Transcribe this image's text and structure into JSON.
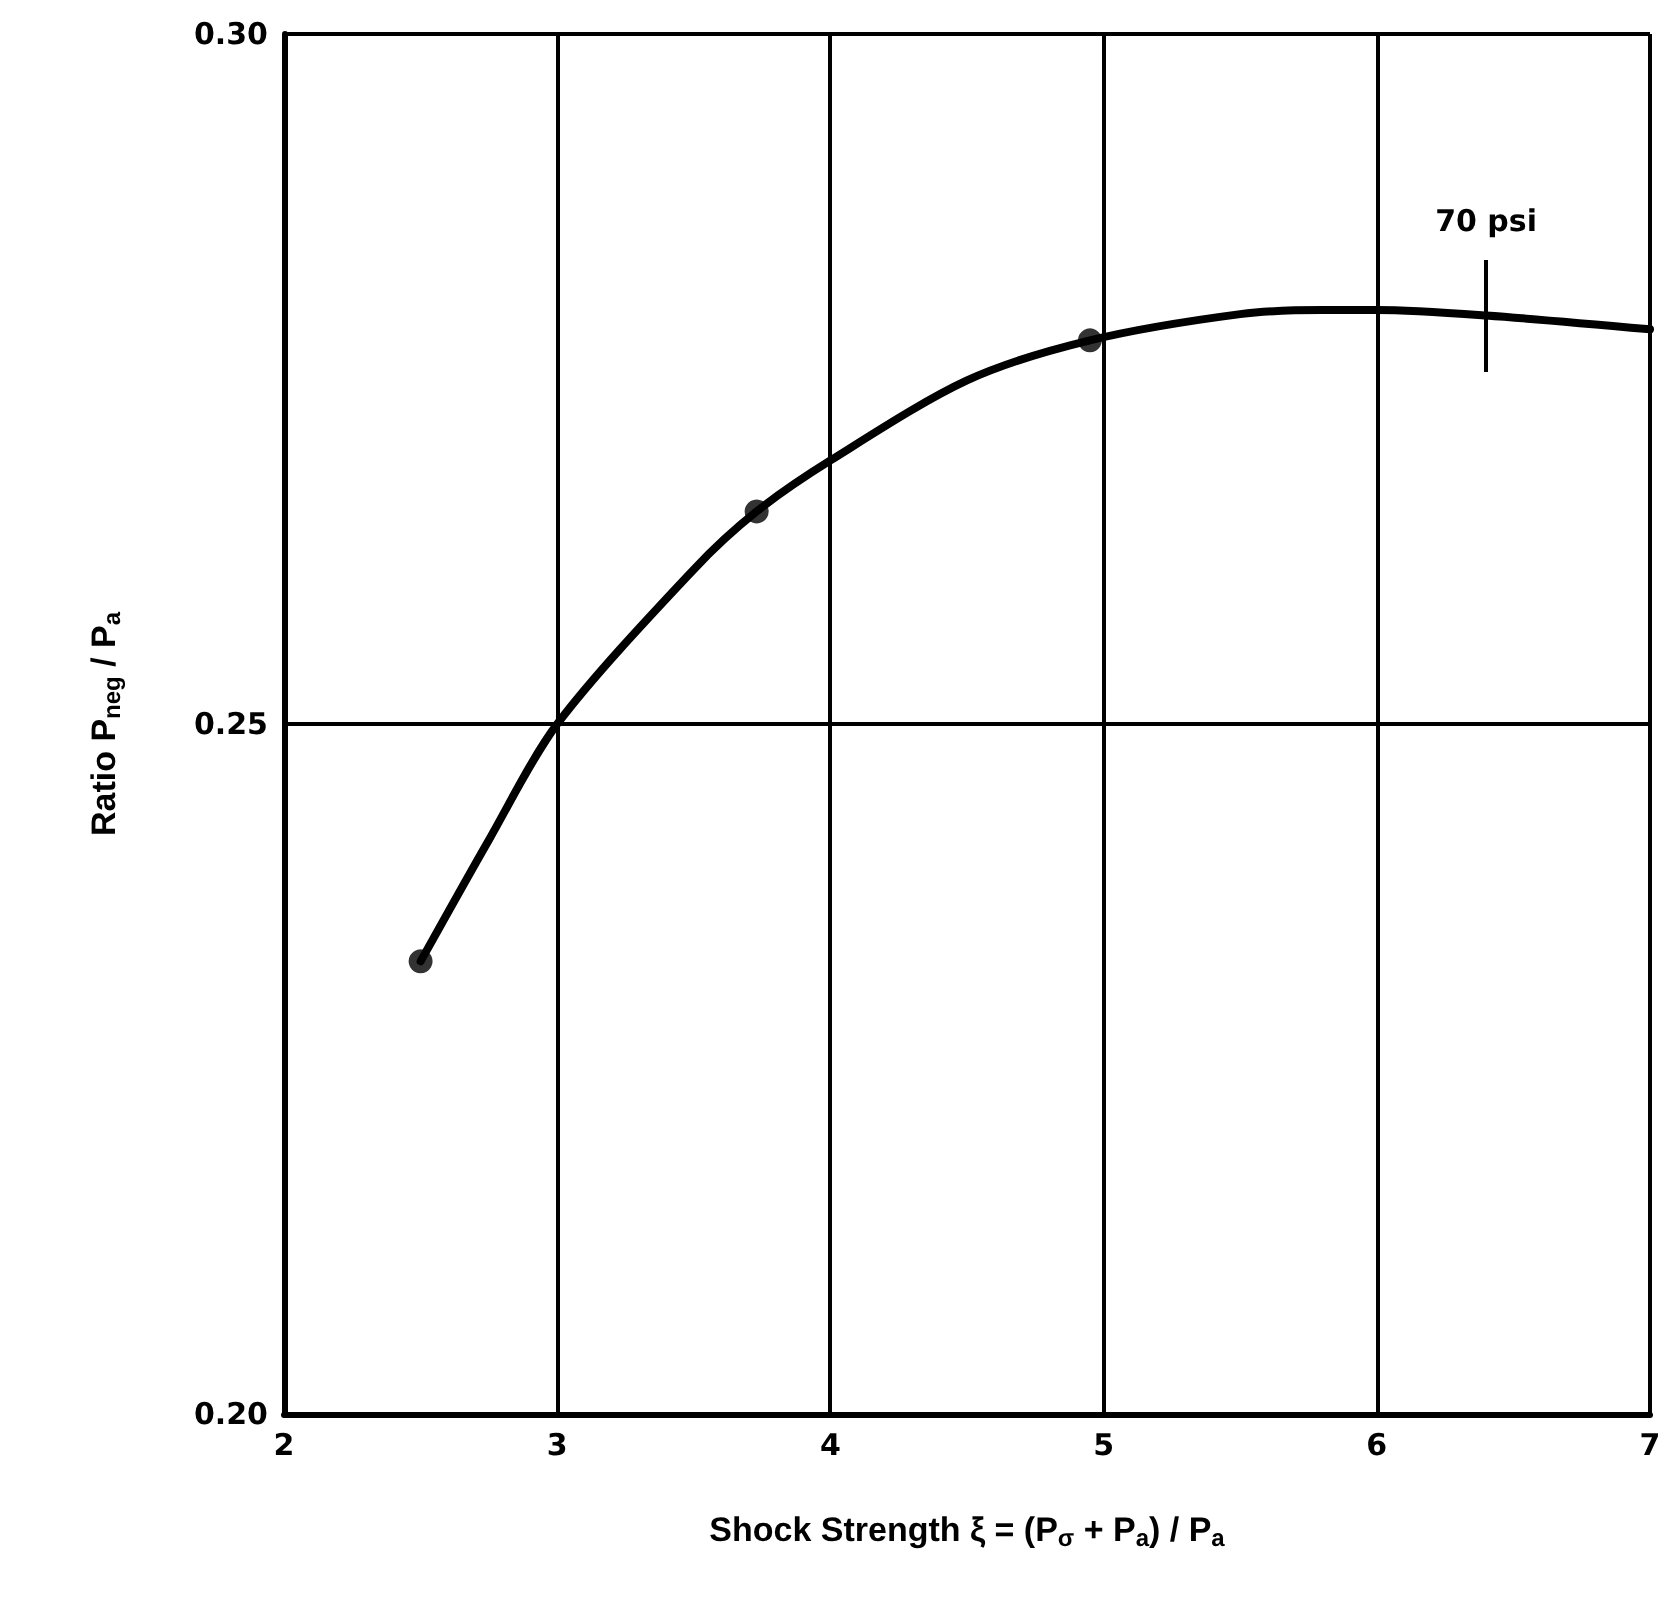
{
  "chart_data": {
    "type": "line",
    "xlabel": "Shock Strength ξ = (P$_{σ}$ + P$_{a}$) / P$_{a}$",
    "ylabel": "Ratio P$_{neg}$ / P$_{a}$",
    "xlim": [
      2,
      7
    ],
    "xticks": [
      2,
      3,
      4,
      5,
      6,
      7
    ],
    "ylim": [
      0.2,
      0.3
    ],
    "yticks": [
      {
        "value": 0.2,
        "label": "0.20"
      },
      {
        "value": 0.25,
        "label": "0.25"
      },
      {
        "value": 0.3,
        "label": "0.30"
      }
    ],
    "grid": true,
    "series": [
      {
        "color": "#000000",
        "marker": "none",
        "line_style": "solid",
        "x": [
          2.5,
          2.75,
          3,
          3.5,
          3.73,
          4,
          4.5,
          4.95,
          5.5,
          5.8,
          6,
          6.4,
          7
        ],
        "values": [
          0.2328,
          0.2416,
          0.25,
          0.2612,
          0.2654,
          0.2691,
          0.2749,
          0.2778,
          0.2797,
          0.28,
          0.28,
          0.2796,
          0.2786
        ]
      },
      {
        "type": "scatter",
        "color": "#000000",
        "marker": "circle",
        "x": [
          2.5,
          3.73,
          4.95
        ],
        "values": [
          0.2328,
          0.2654,
          0.2778
        ]
      }
    ],
    "annotations": [
      {
        "text": "70 psi",
        "x": 6.4,
        "y": 0.2796
      }
    ]
  }
}
